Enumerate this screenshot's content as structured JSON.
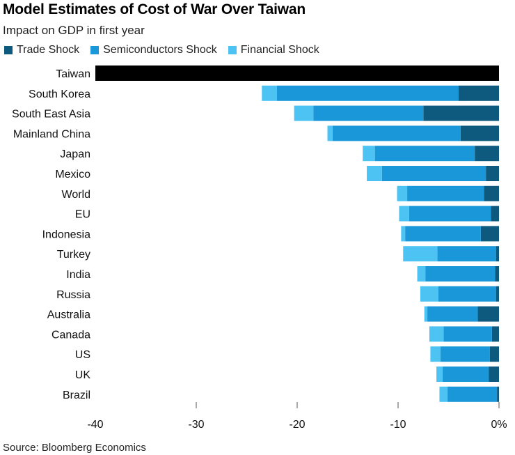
{
  "title": "Model Estimates of Cost of War Over Taiwan",
  "subtitle": "Impact on GDP in first year",
  "source": "Source: Bloomberg Economics",
  "colors": {
    "trade": "#0e5a7e",
    "semiconductors": "#1a97d9",
    "financial": "#4dc3f4",
    "taiwan": "#000000",
    "axis": "#555555"
  },
  "chart_data": {
    "type": "bar",
    "orientation": "horizontal",
    "stacked": true,
    "title": "Model Estimates of Cost of War Over Taiwan",
    "subtitle": "Impact on GDP in first year",
    "categories": [
      "Taiwan",
      "South Korea",
      "South East Asia",
      "Mainland China",
      "Japan",
      "Mexico",
      "World",
      "EU",
      "Indonesia",
      "Turkey",
      "India",
      "Russia",
      "Australia",
      "Canada",
      "US",
      "UK",
      "Brazil"
    ],
    "series": [
      {
        "name": "Trade Shock",
        "values": [
          -40,
          -4.0,
          -7.5,
          -3.8,
          -2.4,
          -1.3,
          -1.5,
          -0.8,
          -1.8,
          -0.3,
          -0.4,
          -0.3,
          -2.1,
          -0.7,
          -0.9,
          -1.0,
          -0.2
        ]
      },
      {
        "name": "Semiconductors Shock",
        "values": [
          0,
          -18.0,
          -10.9,
          -12.7,
          -9.9,
          -10.3,
          -7.6,
          -8.1,
          -7.5,
          -5.8,
          -6.9,
          -5.7,
          -5.0,
          -4.8,
          -4.9,
          -4.6,
          -4.9
        ]
      },
      {
        "name": "Financial Shock",
        "values": [
          0,
          -1.5,
          -1.9,
          -0.5,
          -1.2,
          -1.5,
          -1.0,
          -1.0,
          -0.4,
          -3.4,
          -0.8,
          -1.8,
          -0.3,
          -1.4,
          -1.0,
          -0.6,
          -0.8
        ]
      }
    ],
    "xticks": [
      "-40",
      "-30",
      "-20",
      "-10",
      "0%"
    ],
    "xlim": [
      -40,
      0
    ],
    "grid": false,
    "legend": "top-left"
  }
}
